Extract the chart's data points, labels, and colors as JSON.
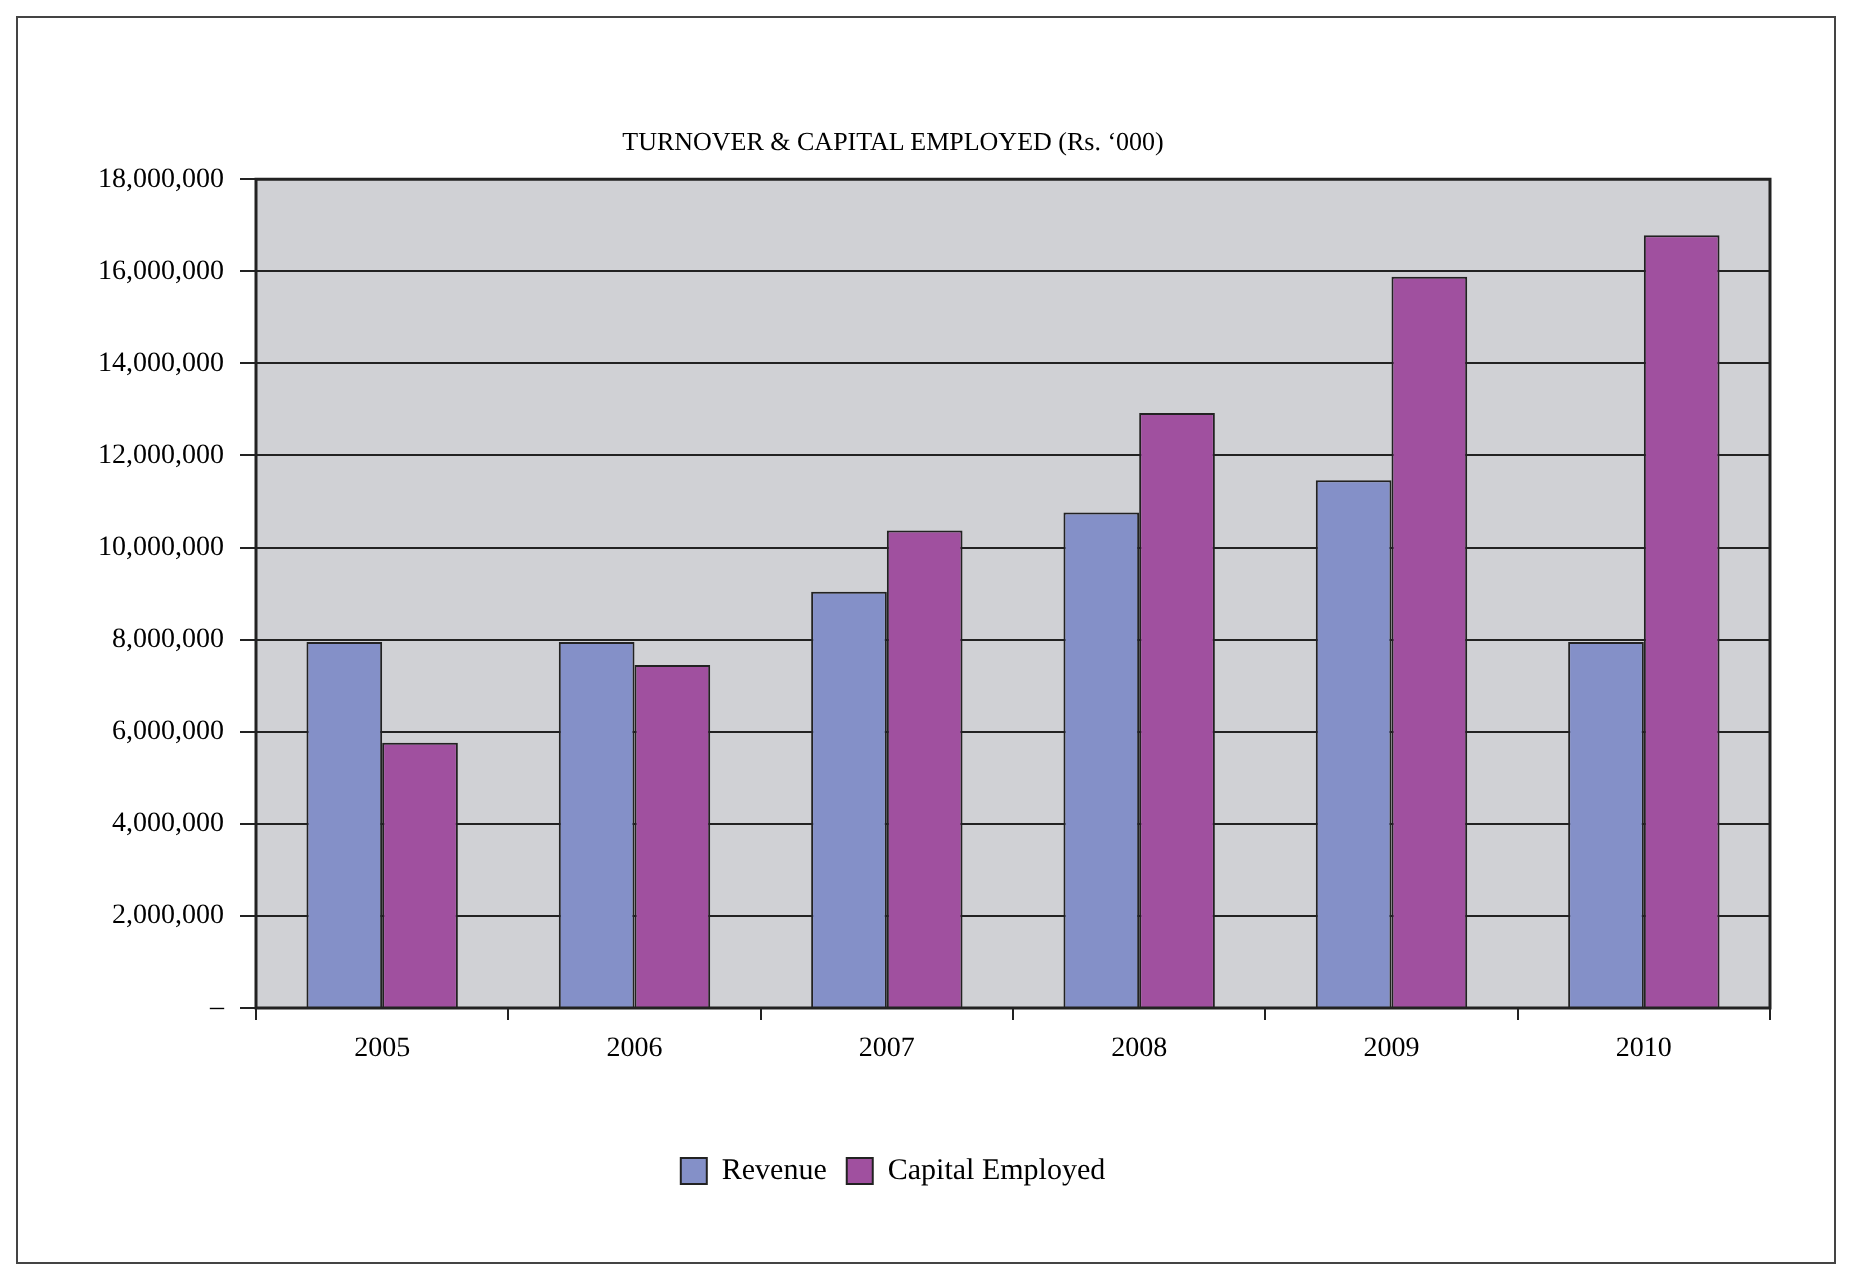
{
  "chart_data": {
    "type": "bar",
    "title": "TURNOVER & CAPITAL EMPLOYED (Rs. ‘000)",
    "categories": [
      "2005",
      "2006",
      "2007",
      "2008",
      "2009",
      "2010"
    ],
    "series": [
      {
        "name": "Revenue",
        "color": "#8490c8",
        "values": [
          7950000,
          7950000,
          9040000,
          10760000,
          11460000,
          7950000
        ]
      },
      {
        "name": "Capital Employed",
        "color": "#a0509f",
        "values": [
          5760000,
          7450000,
          10370000,
          12920000,
          15880000,
          16780000
        ]
      }
    ],
    "ylim": [
      0,
      18000000
    ],
    "yticks": [
      {
        "value": 0,
        "label": "–"
      },
      {
        "value": 2000000,
        "label": "2,000,000"
      },
      {
        "value": 4000000,
        "label": "4,000,000"
      },
      {
        "value": 6000000,
        "label": "6,000,000"
      },
      {
        "value": 8000000,
        "label": "8,000,000"
      },
      {
        "value": 10000000,
        "label": "10,000,000"
      },
      {
        "value": 12000000,
        "label": "12,000,000"
      },
      {
        "value": 14000000,
        "label": "14,000,000"
      },
      {
        "value": 16000000,
        "label": "16,000,000"
      },
      {
        "value": 18000000,
        "label": "18,000,000"
      }
    ],
    "grid": "y",
    "legend": "bottom"
  }
}
